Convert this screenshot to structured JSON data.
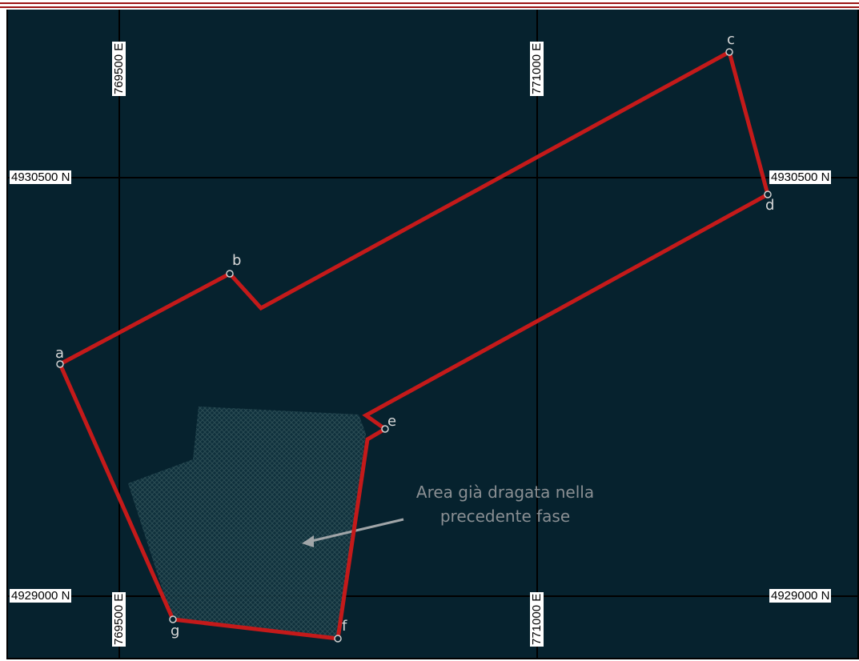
{
  "map": {
    "grid_labels": {
      "north_top": "4930500  N",
      "north_bottom": "4929000  N",
      "east_left": "769500  E",
      "east_right": "771000  E"
    },
    "vertices": [
      "a",
      "b",
      "c",
      "d",
      "e",
      "f",
      "g"
    ],
    "annotation": {
      "line1": "Area già dragata nella",
      "line2": "precedente fase"
    },
    "colors": {
      "background": "#06222e",
      "boundary": "#c41a1a",
      "grid": "#000000",
      "hatched_area": "#2a4a50"
    }
  }
}
